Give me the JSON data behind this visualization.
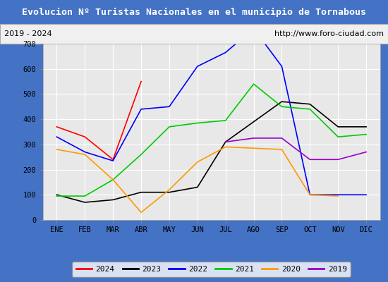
{
  "title": "Evolucion Nº Turistas Nacionales en el municipio de Tornabous",
  "subtitle_left": "2019 - 2024",
  "subtitle_right": "http://www.foro-ciudad.com",
  "months": [
    "ENE",
    "FEB",
    "MAR",
    "ABR",
    "MAY",
    "JUN",
    "JUL",
    "AGO",
    "SEP",
    "OCT",
    "NOV",
    "DIC"
  ],
  "ylim": [
    0,
    700
  ],
  "yticks": [
    0,
    100,
    200,
    300,
    400,
    500,
    600,
    700
  ],
  "series": {
    "2024": {
      "color": "#ff0000",
      "values": [
        370,
        330,
        240,
        550,
        null,
        null,
        null,
        null,
        null,
        null,
        null,
        null
      ]
    },
    "2023": {
      "color": "#000000",
      "values": [
        100,
        70,
        80,
        110,
        110,
        130,
        310,
        390,
        470,
        460,
        370,
        370
      ]
    },
    "2022": {
      "color": "#0000ff",
      "values": [
        330,
        270,
        235,
        440,
        450,
        610,
        665,
        760,
        610,
        100,
        100,
        100
      ]
    },
    "2021": {
      "color": "#00cc00",
      "values": [
        95,
        95,
        160,
        260,
        370,
        385,
        395,
        540,
        450,
        440,
        330,
        340
      ]
    },
    "2020": {
      "color": "#ff9900",
      "values": [
        280,
        260,
        160,
        30,
        120,
        230,
        290,
        285,
        280,
        100,
        95,
        null
      ]
    },
    "2019": {
      "color": "#9900cc",
      "values": [
        null,
        null,
        null,
        null,
        null,
        null,
        310,
        325,
        325,
        240,
        240,
        270
      ]
    }
  },
  "title_bg_color": "#4472c4",
  "title_text_color": "#ffffff",
  "plot_bg_color": "#e8e8e8",
  "subtitle_bg_color": "#f0f0f0",
  "grid_color": "#ffffff",
  "legend_order": [
    "2024",
    "2023",
    "2022",
    "2021",
    "2020",
    "2019"
  ],
  "fig_bg_color": "#4472c4"
}
